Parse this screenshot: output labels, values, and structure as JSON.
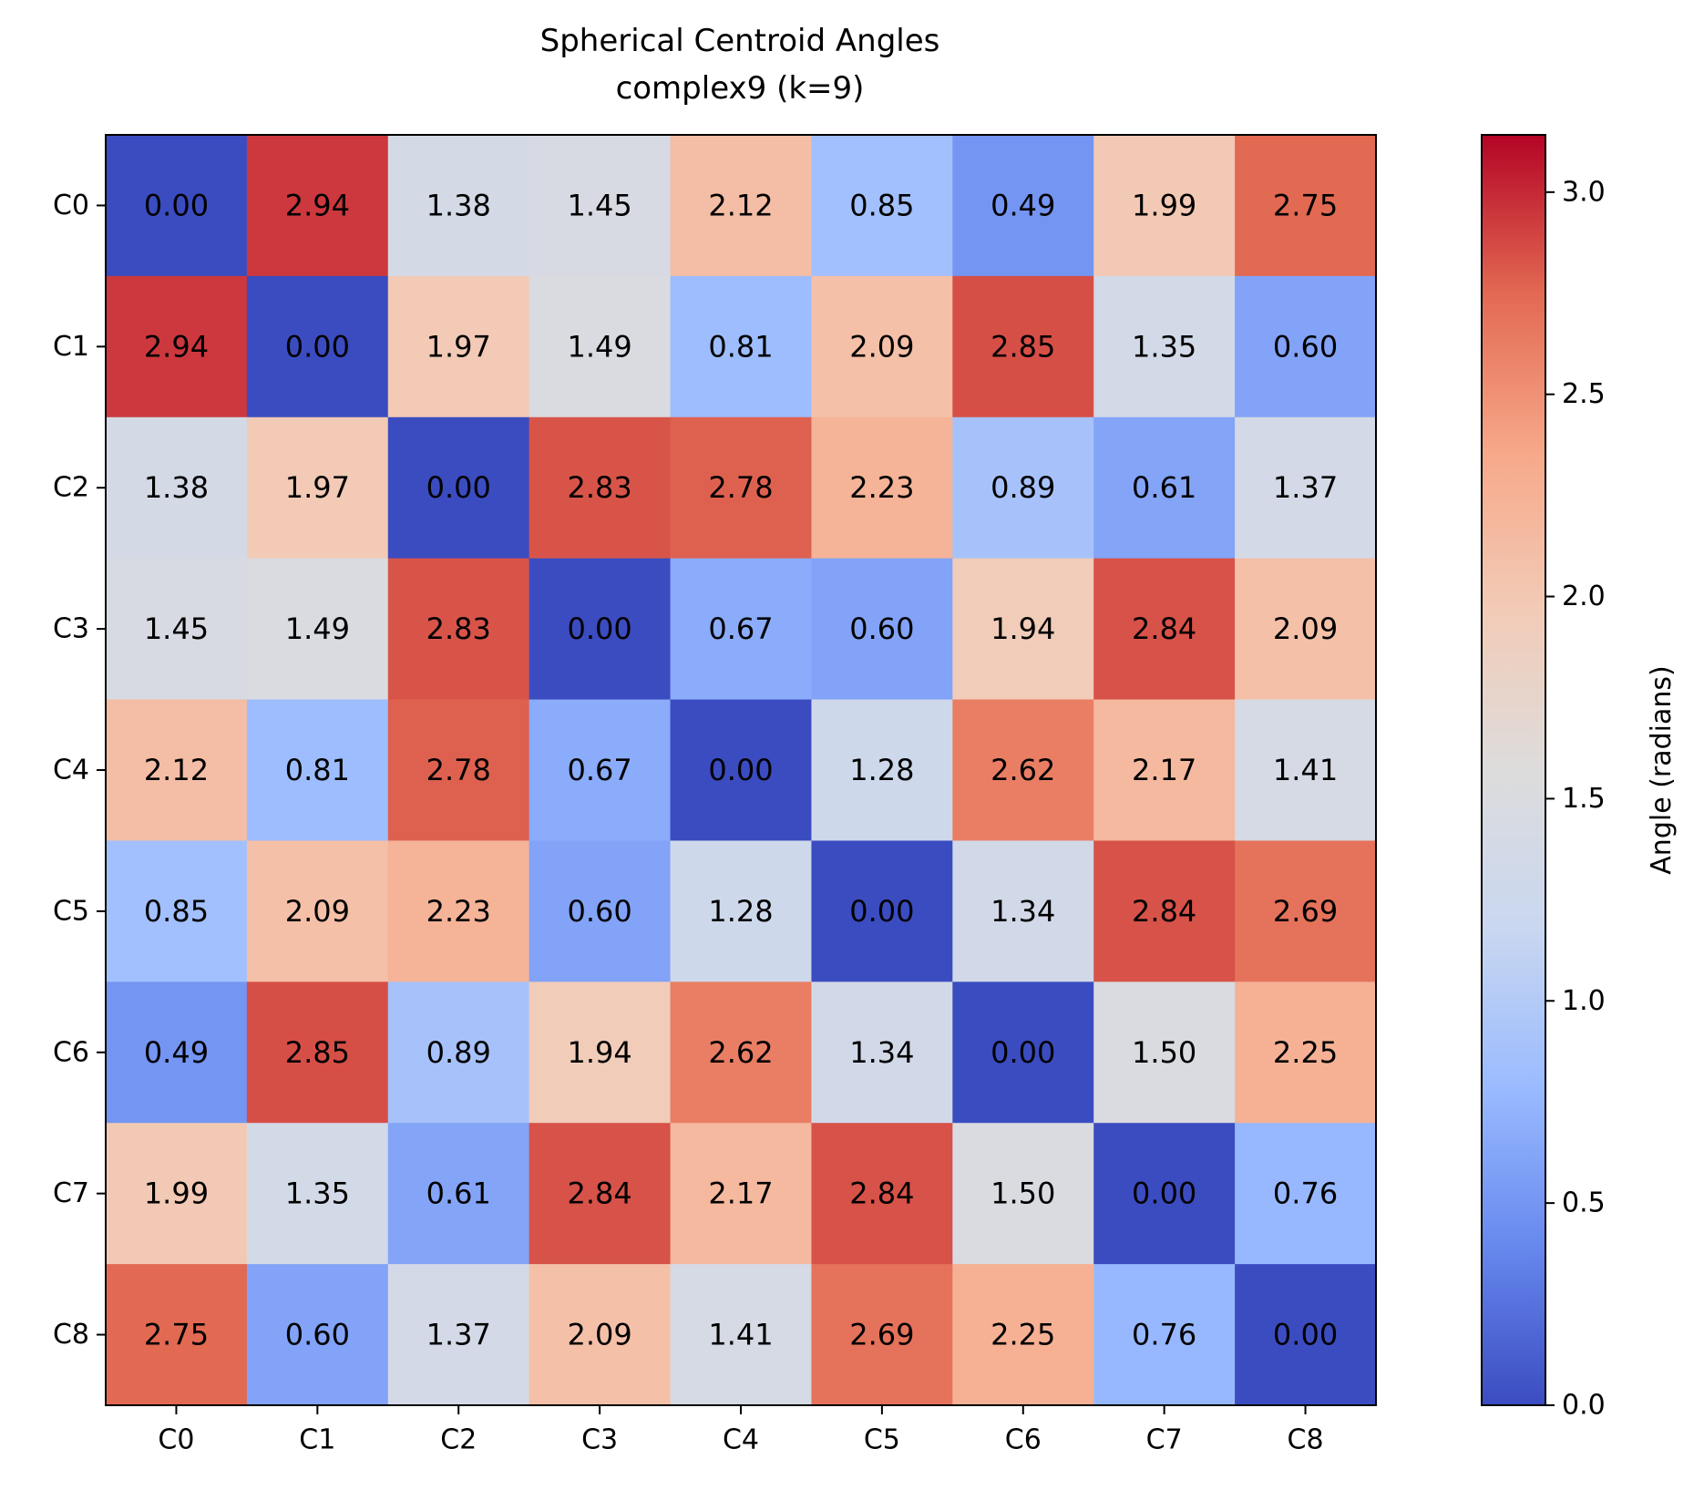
{
  "chart_data": {
    "type": "heatmap",
    "title": "Spherical Centroid Angles",
    "subtitle": "complex9 (k=9)",
    "x_labels": [
      "C0",
      "C1",
      "C2",
      "C3",
      "C4",
      "C5",
      "C6",
      "C7",
      "C8"
    ],
    "y_labels": [
      "C0",
      "C1",
      "C2",
      "C3",
      "C4",
      "C5",
      "C6",
      "C7",
      "C8"
    ],
    "values": [
      [
        0.0,
        2.94,
        1.38,
        1.45,
        2.12,
        0.85,
        0.49,
        1.99,
        2.75
      ],
      [
        2.94,
        0.0,
        1.97,
        1.49,
        0.81,
        2.09,
        2.85,
        1.35,
        0.6
      ],
      [
        1.38,
        1.97,
        0.0,
        2.83,
        2.78,
        2.23,
        0.89,
        0.61,
        1.37
      ],
      [
        1.45,
        1.49,
        2.83,
        0.0,
        0.67,
        0.6,
        1.94,
        2.84,
        2.09
      ],
      [
        2.12,
        0.81,
        2.78,
        0.67,
        0.0,
        1.28,
        2.62,
        2.17,
        1.41
      ],
      [
        0.85,
        2.09,
        2.23,
        0.6,
        1.28,
        0.0,
        1.34,
        2.84,
        2.69
      ],
      [
        0.49,
        2.85,
        0.89,
        1.94,
        2.62,
        1.34,
        0.0,
        1.5,
        2.25
      ],
      [
        1.99,
        1.35,
        0.61,
        2.84,
        2.17,
        2.84,
        1.5,
        0.0,
        0.76
      ],
      [
        2.75,
        0.6,
        1.37,
        2.09,
        1.41,
        2.69,
        2.25,
        0.76,
        0.0
      ]
    ],
    "value_format_decimals": 2,
    "colormap": "coolwarm",
    "colormap_stops": [
      "#3b4cc0",
      "#6788ee",
      "#9abbff",
      "#c9d7f0",
      "#dddcdc",
      "#f2cbb7",
      "#f7a889",
      "#e26952",
      "#b40426"
    ],
    "color_range": [
      0,
      3.14159
    ],
    "colorbar": {
      "label": "Angle (radians)",
      "ticks": [
        0.0,
        0.5,
        1.0,
        1.5,
        2.0,
        2.5,
        3.0
      ],
      "tick_labels": [
        "0.0",
        "0.5",
        "1.0",
        "1.5",
        "2.0",
        "2.5",
        "3.0"
      ]
    }
  }
}
